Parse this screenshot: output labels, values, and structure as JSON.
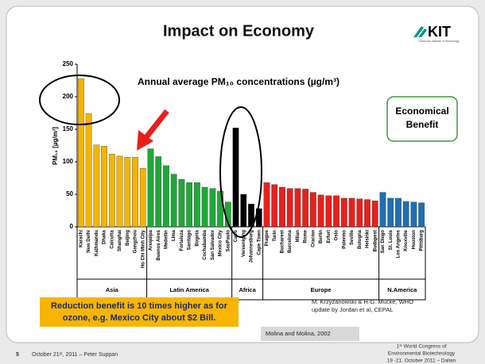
{
  "slide": {
    "title": "Impact on Economy",
    "logo": {
      "name": "KIT",
      "subtitle": "Karlsruhe Institute of Technology"
    },
    "benefit_box": [
      "Economical",
      "Benefit"
    ],
    "note_box": [
      "Reduction benefit is 10 times higher as for",
      "ozone, e.g. Mexico City about $2 Bill."
    ],
    "source": [
      "M. Krzyzanowski & H-G. Mucke, WHO",
      "update by Jordan et al, CEPAL"
    ],
    "citation": "Molina and Molina, 2002",
    "footer": {
      "page": "5",
      "left": "October 21ˢᵗ, 2011 – Peter Suppan",
      "right": [
        "1ˢᵗ World Congress of",
        "Environmental Biotechnology",
        "19 -21. October 2011 – Dalian"
      ]
    }
  },
  "chart_data": {
    "type": "bar",
    "title": "Annual average PM₁₀ concentrations (µg/m³)",
    "y_label": "PM₁₀ [µg/m³]",
    "ylim": [
      0,
      250
    ],
    "yticks": [
      0,
      50,
      100,
      150,
      200,
      250
    ],
    "series": [
      {
        "name": "Asia",
        "color": "#f5b400",
        "categories": [
          "Karachi",
          "New Delhi",
          "Kathmandu",
          "Dhaka",
          "Calcutta",
          "Shanghai",
          "Beijing",
          "Gangzhou",
          "Ho Chi Minh City"
        ],
        "values": [
          228,
          174,
          126,
          124,
          112,
          109,
          107,
          107,
          90
        ]
      },
      {
        "name": "Latin America",
        "color": "#1fa83a",
        "categories": [
          "Arequipa",
          "Buenos Aires",
          "Medellin",
          "Lima",
          "Fortaleza",
          "Santiago",
          "Bogota",
          "Cochabamba",
          "San Salvador",
          "Mexico City",
          "SaoPaulo"
        ],
        "values": [
          120,
          108,
          94,
          81,
          73,
          68,
          68,
          61,
          59,
          55,
          38
        ]
      },
      {
        "name": "Africa",
        "color": "#000000",
        "categories": [
          "Cairo",
          "Vereeniging",
          "Johannesburg",
          "Cape Town"
        ],
        "values": [
          152,
          50,
          35,
          28
        ]
      },
      {
        "name": "Europe",
        "color": "#e8201c",
        "categories": [
          "Prague",
          "Turin",
          "Bucharest",
          "Barcelona",
          "Milan",
          "Rome",
          "Cracow",
          "Berlin",
          "Erfurt",
          "Oslo",
          "Palermo",
          "Seville",
          "Bologna",
          "Helsinki",
          "Budapest"
        ],
        "values": [
          68,
          65,
          61,
          59,
          59,
          58,
          53,
          49,
          48,
          48,
          44,
          44,
          43,
          42,
          40
        ]
      },
      {
        "name": "N.America",
        "color": "#1f6fb5",
        "categories": [
          "San Diego",
          "St. Louis",
          "Los Angeles",
          "Knoxville",
          "Houston",
          "Pittsburg"
        ],
        "values": [
          53,
          44,
          44,
          39,
          38,
          37
        ]
      }
    ]
  }
}
